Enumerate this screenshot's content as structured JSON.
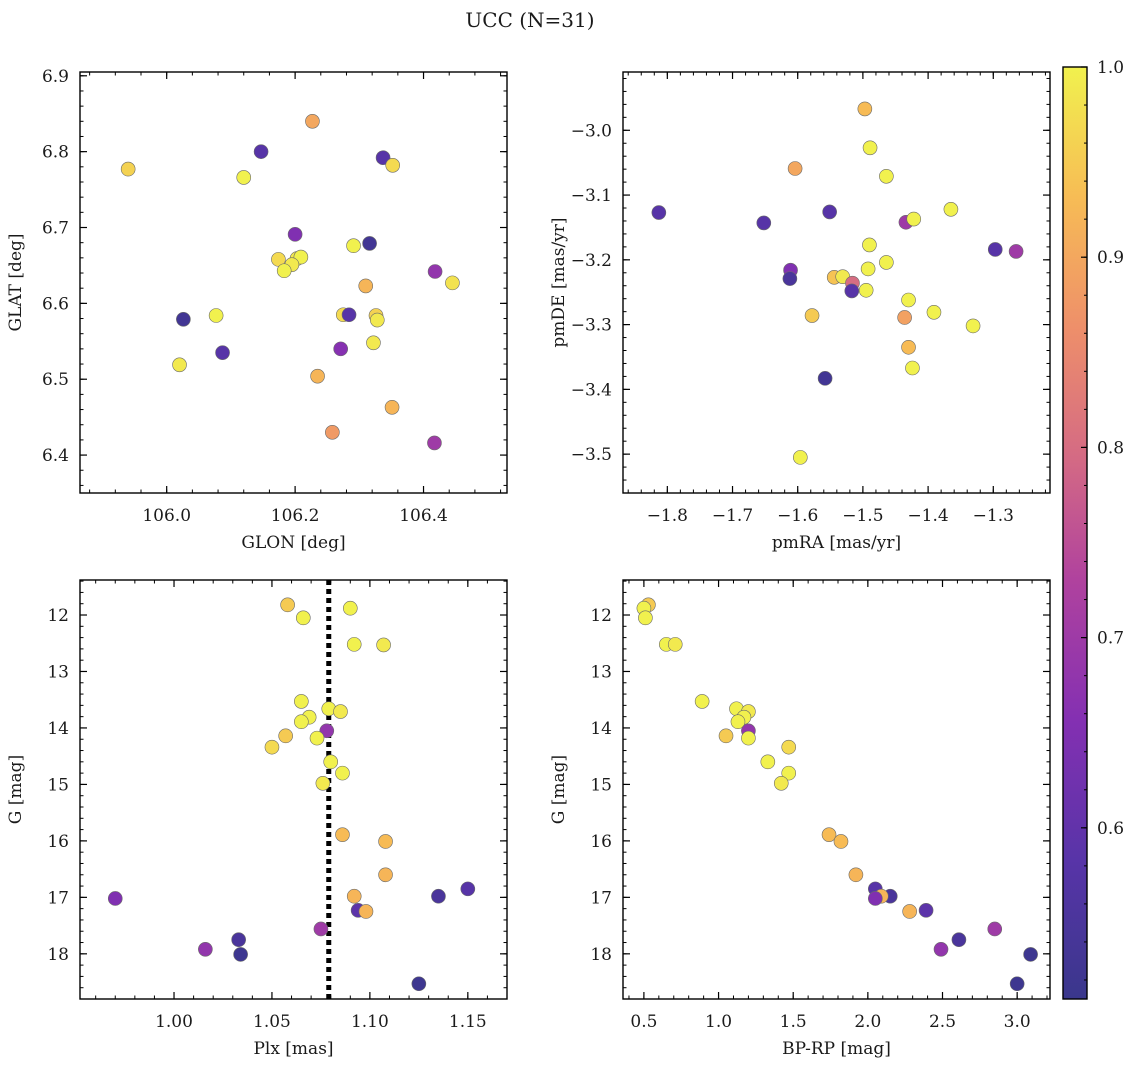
{
  "figure": {
    "suptitle": "UCC (N=31)",
    "colorbar": {
      "colormap": "plasma",
      "range": [
        0.51,
        1.0
      ],
      "ticks": [
        0.6,
        0.7,
        0.8,
        0.9,
        1.0
      ],
      "tick_labels": [
        "0.6",
        "0.7",
        "0.8",
        "0.9",
        "1.0"
      ]
    }
  },
  "chart_data": [
    {
      "type": "scatter",
      "panel": "top-left",
      "title": "",
      "xlabel": "GLON [deg]",
      "ylabel": "GLAT [deg]",
      "xlim": [
        105.865,
        106.53
      ],
      "ylim": [
        6.35,
        6.905
      ],
      "xticks": [
        106.0,
        106.2,
        106.4
      ],
      "xtick_labels": [
        "106.0",
        "106.2",
        "106.4"
      ],
      "yticks": [
        6.4,
        6.5,
        6.6,
        6.7,
        6.8,
        6.9
      ],
      "ytick_labels": [
        "6.4",
        "6.5",
        "6.6",
        "6.7",
        "6.8",
        "6.9"
      ],
      "invert_y": false,
      "points": [
        [
          105.94,
          6.777,
          0.96
        ],
        [
          106.12,
          6.766,
          1.0
        ],
        [
          106.147,
          6.8,
          0.58
        ],
        [
          106.227,
          6.84,
          0.9
        ],
        [
          106.337,
          6.792,
          0.58
        ],
        [
          106.352,
          6.782,
          0.97
        ],
        [
          106.2,
          6.691,
          0.65
        ],
        [
          106.316,
          6.679,
          0.53
        ],
        [
          106.291,
          6.676,
          1.0
        ],
        [
          106.203,
          6.659,
          0.99
        ],
        [
          106.209,
          6.661,
          1.0
        ],
        [
          106.174,
          6.658,
          0.97
        ],
        [
          106.195,
          6.651,
          0.99
        ],
        [
          106.183,
          6.643,
          1.0
        ],
        [
          106.418,
          6.642,
          0.68
        ],
        [
          106.445,
          6.627,
          0.98
        ],
        [
          106.31,
          6.623,
          0.92
        ],
        [
          106.275,
          6.585,
          0.97
        ],
        [
          106.284,
          6.585,
          0.58
        ],
        [
          106.326,
          6.584,
          0.96
        ],
        [
          106.328,
          6.578,
          0.99
        ],
        [
          106.026,
          6.579,
          0.53
        ],
        [
          106.077,
          6.584,
          1.0
        ],
        [
          106.087,
          6.535,
          0.58
        ],
        [
          106.02,
          6.519,
          0.99
        ],
        [
          106.322,
          6.548,
          0.99
        ],
        [
          106.271,
          6.54,
          0.66
        ],
        [
          106.235,
          6.504,
          0.92
        ],
        [
          106.351,
          6.463,
          0.92
        ],
        [
          106.258,
          6.43,
          0.88
        ],
        [
          106.417,
          6.416,
          0.7
        ]
      ]
    },
    {
      "type": "scatter",
      "panel": "top-right",
      "title": "",
      "xlabel": "pmRA [mas/yr]",
      "ylabel": "pmDE [mas/yr]",
      "xlim": [
        -1.868,
        -1.213
      ],
      "ylim": [
        -3.56,
        -2.91
      ],
      "xticks": [
        -1.8,
        -1.7,
        -1.6,
        -1.5,
        -1.4,
        -1.3
      ],
      "xtick_labels": [
        "−1.8",
        "−1.7",
        "−1.6",
        "−1.5",
        "−1.4",
        "−1.3"
      ],
      "yticks": [
        -3.5,
        -3.4,
        -3.3,
        -3.2,
        -3.1,
        -3.0
      ],
      "ytick_labels": [
        "−3.5",
        "−3.4",
        "−3.3",
        "−3.2",
        "−3.1",
        "−3.0"
      ],
      "invert_y": false,
      "points": [
        [
          -1.497,
          -2.967,
          0.93
        ],
        [
          -1.489,
          -3.027,
          1.0
        ],
        [
          -1.464,
          -3.071,
          1.0
        ],
        [
          -1.604,
          -3.059,
          0.9
        ],
        [
          -1.813,
          -3.127,
          0.58
        ],
        [
          -1.652,
          -3.143,
          0.58
        ],
        [
          -1.551,
          -3.126,
          0.58
        ],
        [
          -1.434,
          -3.142,
          0.7
        ],
        [
          -1.422,
          -3.137,
          1.0
        ],
        [
          -1.365,
          -3.122,
          1.0
        ],
        [
          -1.297,
          -3.184,
          0.58
        ],
        [
          -1.265,
          -3.187,
          0.7
        ],
        [
          -1.49,
          -3.177,
          1.0
        ],
        [
          -1.611,
          -3.216,
          0.65
        ],
        [
          -1.612,
          -3.229,
          0.55
        ],
        [
          -1.544,
          -3.227,
          0.94
        ],
        [
          -1.531,
          -3.226,
          0.99
        ],
        [
          -1.516,
          -3.236,
          0.8
        ],
        [
          -1.517,
          -3.248,
          0.58
        ],
        [
          -1.492,
          -3.214,
          1.0
        ],
        [
          -1.464,
          -3.204,
          1.0
        ],
        [
          -1.495,
          -3.247,
          1.0
        ],
        [
          -1.43,
          -3.262,
          1.0
        ],
        [
          -1.391,
          -3.281,
          1.0
        ],
        [
          -1.436,
          -3.289,
          0.89
        ],
        [
          -1.331,
          -3.302,
          1.0
        ],
        [
          -1.578,
          -3.286,
          0.95
        ],
        [
          -1.43,
          -3.335,
          0.93
        ],
        [
          -1.424,
          -3.367,
          1.0
        ],
        [
          -1.558,
          -3.383,
          0.53
        ],
        [
          -1.596,
          -3.505,
          1.0
        ]
      ]
    },
    {
      "type": "scatter",
      "panel": "bottom-left",
      "title": "",
      "xlabel": "Plx [mas]",
      "ylabel": "G [mag]",
      "xlim": [
        0.952,
        1.17
      ],
      "ylim": [
        11.38,
        18.8
      ],
      "xticks": [
        1.0,
        1.05,
        1.1,
        1.15
      ],
      "xtick_labels": [
        "1.00",
        "1.05",
        "1.10",
        "1.15"
      ],
      "yticks": [
        12,
        13,
        14,
        15,
        16,
        17,
        18
      ],
      "ytick_labels": [
        "12",
        "13",
        "14",
        "15",
        "16",
        "17",
        "18"
      ],
      "invert_y": true,
      "vline": 1.079,
      "points": [
        [
          1.058,
          11.82,
          0.95
        ],
        [
          1.066,
          12.05,
          1.0
        ],
        [
          1.09,
          11.88,
          1.0
        ],
        [
          1.092,
          12.52,
          1.0
        ],
        [
          1.107,
          12.53,
          0.99
        ],
        [
          1.065,
          13.53,
          1.0
        ],
        [
          1.079,
          13.66,
          1.0
        ],
        [
          1.085,
          13.71,
          0.99
        ],
        [
          1.069,
          13.81,
          1.0
        ],
        [
          1.065,
          13.89,
          1.0
        ],
        [
          1.078,
          14.05,
          0.68
        ],
        [
          1.057,
          14.14,
          0.95
        ],
        [
          1.073,
          14.18,
          1.0
        ],
        [
          1.05,
          14.34,
          0.97
        ],
        [
          1.08,
          14.6,
          1.0
        ],
        [
          1.086,
          14.8,
          1.0
        ],
        [
          1.076,
          14.98,
          0.99
        ],
        [
          1.086,
          15.89,
          0.93
        ],
        [
          1.108,
          16.01,
          0.93
        ],
        [
          1.108,
          16.6,
          0.92
        ],
        [
          1.15,
          16.85,
          0.58
        ],
        [
          1.135,
          16.98,
          0.55
        ],
        [
          1.092,
          16.98,
          0.92
        ],
        [
          0.97,
          17.02,
          0.65
        ],
        [
          1.094,
          17.23,
          0.59
        ],
        [
          1.098,
          17.25,
          0.92
        ],
        [
          1.075,
          17.56,
          0.7
        ],
        [
          1.033,
          17.75,
          0.55
        ],
        [
          1.016,
          17.92,
          0.68
        ],
        [
          1.034,
          18.01,
          0.52
        ],
        [
          1.125,
          18.53,
          0.52
        ]
      ]
    },
    {
      "type": "scatter",
      "panel": "bottom-right",
      "title": "",
      "xlabel": "BP-RP [mag]",
      "ylabel": "G [mag]",
      "xlim": [
        0.36,
        3.22
      ],
      "ylim": [
        11.38,
        18.8
      ],
      "xticks": [
        0.5,
        1.0,
        1.5,
        2.0,
        2.5,
        3.0
      ],
      "xtick_labels": [
        "0.5",
        "1.0",
        "1.5",
        "2.0",
        "2.5",
        "3.0"
      ],
      "yticks": [
        12,
        13,
        14,
        15,
        16,
        17,
        18
      ],
      "ytick_labels": [
        "12",
        "13",
        "14",
        "15",
        "16",
        "17",
        "18"
      ],
      "invert_y": true,
      "points": [
        [
          0.53,
          11.82,
          0.95
        ],
        [
          0.5,
          11.88,
          1.0
        ],
        [
          0.51,
          12.05,
          1.0
        ],
        [
          0.65,
          12.52,
          1.0
        ],
        [
          0.71,
          12.52,
          0.99
        ],
        [
          0.89,
          13.53,
          1.0
        ],
        [
          1.12,
          13.66,
          1.0
        ],
        [
          1.2,
          13.71,
          0.99
        ],
        [
          1.17,
          13.81,
          1.0
        ],
        [
          1.13,
          13.89,
          1.0
        ],
        [
          1.2,
          14.05,
          0.68
        ],
        [
          1.05,
          14.14,
          0.95
        ],
        [
          1.2,
          14.18,
          1.0
        ],
        [
          1.47,
          14.34,
          0.97
        ],
        [
          1.33,
          14.6,
          1.0
        ],
        [
          1.47,
          14.8,
          1.0
        ],
        [
          1.42,
          14.98,
          0.99
        ],
        [
          1.74,
          15.89,
          0.93
        ],
        [
          1.82,
          16.01,
          0.93
        ],
        [
          1.92,
          16.6,
          0.92
        ],
        [
          2.05,
          16.85,
          0.58
        ],
        [
          2.15,
          16.98,
          0.55
        ],
        [
          2.09,
          16.98,
          0.92
        ],
        [
          2.05,
          17.02,
          0.65
        ],
        [
          2.39,
          17.23,
          0.59
        ],
        [
          2.28,
          17.25,
          0.92
        ],
        [
          2.85,
          17.56,
          0.7
        ],
        [
          2.61,
          17.75,
          0.55
        ],
        [
          2.49,
          17.92,
          0.68
        ],
        [
          3.09,
          18.01,
          0.52
        ],
        [
          3.0,
          18.53,
          0.52
        ]
      ]
    }
  ]
}
